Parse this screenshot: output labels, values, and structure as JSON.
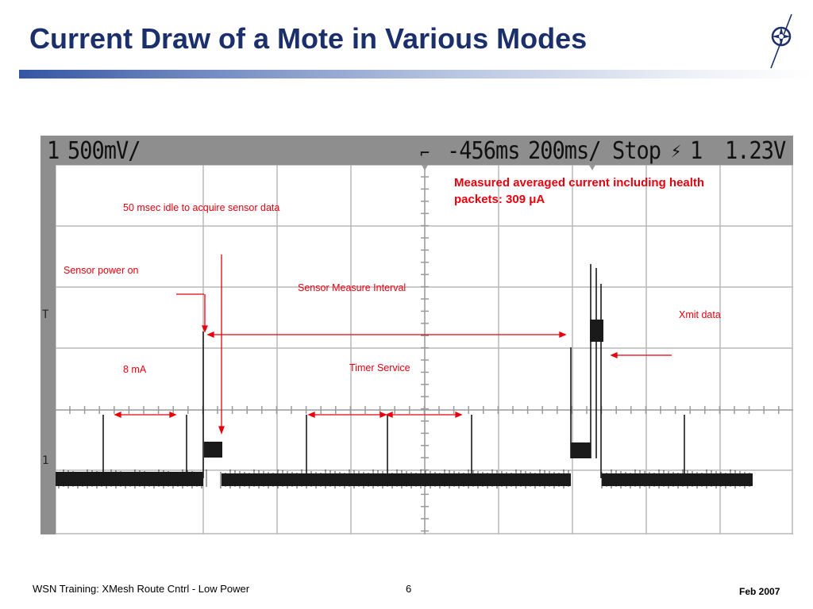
{
  "slide": {
    "title": "Current Draw of a Mote in Various Modes",
    "footer_left": "WSN Training: XMesh Route Cntrl - Low Power",
    "page_number": "6",
    "footer_date": "Feb 2007"
  },
  "scope": {
    "channel": "1",
    "ch_scale": "500mV/",
    "time_offset": "-456ms",
    "time_scale": "200ms/",
    "run_state": "Stop",
    "trigger": "1",
    "trigger_level": "1.23V"
  },
  "annotations": {
    "averaged_current": "Measured averaged current including health packets: 309 μA",
    "idle": "50 msec idle to acquire sensor data",
    "sensor_power_on": "Sensor power on",
    "sensor_measure_interval": "Sensor Measure Interval",
    "xmit_data": "Xmit data",
    "timer_service": "Timer Service",
    "current_8ma": "8 mA"
  },
  "colors": {
    "title": "#1b2f6b",
    "annotation": "#e8000f",
    "scope_frame": "#8e8e8e",
    "trace": "#1a1a1a",
    "grid": "#b8b8b8"
  },
  "icons": {
    "logo": "compass-star-icon"
  }
}
